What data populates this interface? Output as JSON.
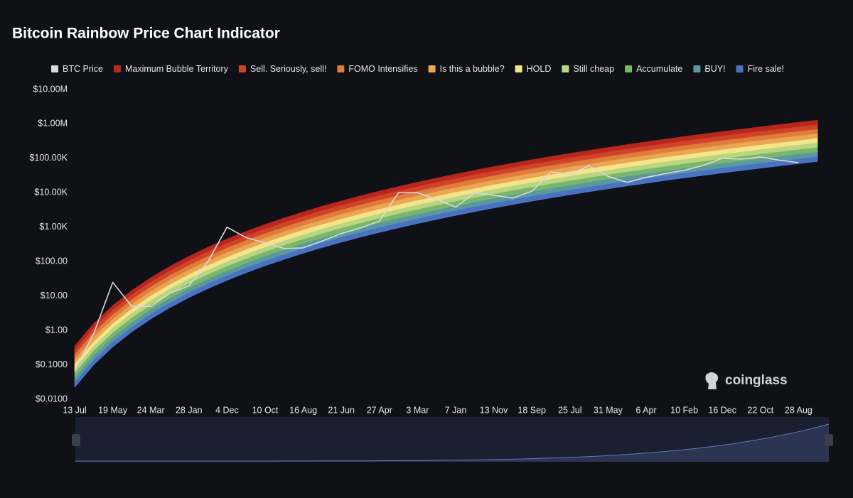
{
  "chart_data": {
    "type": "rainbow",
    "title": "Bitcoin Rainbow Price Chart Indicator",
    "watermark": "coinglass",
    "y_scale": "log",
    "grid": false,
    "legend": "top",
    "ylim": [
      0.01,
      10000000
    ],
    "yticks": [
      {
        "value": 0.01,
        "label": "$0.0100"
      },
      {
        "value": 0.1,
        "label": "$0.1000"
      },
      {
        "value": 1,
        "label": "$1.00"
      },
      {
        "value": 10,
        "label": "$10.00"
      },
      {
        "value": 100,
        "label": "$100.00"
      },
      {
        "value": 1000,
        "label": "$1.00K"
      },
      {
        "value": 10000,
        "label": "$10.00K"
      },
      {
        "value": 100000,
        "label": "$100.00K"
      },
      {
        "value": 1000000,
        "label": "$1.00M"
      },
      {
        "value": 10000000,
        "label": "$10.00M"
      }
    ],
    "categories": [
      "13 Jul",
      null,
      "19 May",
      null,
      "24 Mar",
      null,
      "28 Jan",
      null,
      "4 Dec",
      null,
      "10 Oct",
      null,
      "16 Aug",
      null,
      "21 Jun",
      null,
      "27 Apr",
      null,
      "3 Mar",
      null,
      "7 Jan",
      null,
      "13 Nov",
      null,
      "18 Sep",
      null,
      "25 Jul",
      null,
      "31 May",
      null,
      "6 Apr",
      null,
      "10 Feb",
      null,
      "16 Dec",
      null,
      "22 Oct",
      null,
      "28 Aug",
      null
    ],
    "band_floor": [
      0.0224,
      0.101,
      0.336,
      0.916,
      2.17,
      4.62,
      9.06,
      16.6,
      28.8,
      47.8,
      76.2,
      117,
      176,
      258,
      368,
      515,
      710,
      962,
      1285,
      1694,
      2208,
      2851,
      3631,
      4592,
      5754,
      7145,
      8810,
      10790,
      13120,
      15890,
      19100,
      22860,
      27230,
      32210,
      38020,
      44570,
      52120,
      60670,
      70470,
      81470
    ],
    "series": [
      {
        "name": "BTC Price",
        "color": "#d9d9d9",
        "role": "line",
        "values": [
          0.07,
          0.8,
          25,
          5,
          5,
          12,
          20,
          100,
          1000,
          500,
          350,
          240,
          250,
          400,
          650,
          950,
          1500,
          10000,
          10000,
          6500,
          3800,
          10000,
          8500,
          7000,
          11000,
          40000,
          35000,
          60000,
          30000,
          20000,
          28000,
          36000,
          45000,
          62000,
          100000,
          95000,
          110000,
          88000,
          75000,
          null
        ]
      },
      {
        "name": "Maximum Bubble Territory",
        "color": "#b8261d",
        "role": "band",
        "values": [
          0.355,
          1.6,
          5.33,
          14.5,
          34.4,
          73.2,
          144,
          263,
          456,
          758,
          1208,
          1854,
          2790,
          4089,
          5833,
          8163,
          11250,
          15250,
          20370,
          26850,
          35000,
          45190,
          57550,
          72780,
          91200,
          113200,
          139600,
          171000,
          208000,
          251900,
          302700,
          362300,
          431600,
          510500,
          602600,
          706400,
          826100,
          961600,
          1117000,
          1291000
        ]
      },
      {
        "name": "Sell. Seriously, sell!",
        "color": "#cf4428",
        "role": "band",
        "values": [
          0.261,
          1.18,
          3.92,
          10.7,
          25.3,
          53.9,
          106,
          194,
          336,
          557,
          888,
          1364,
          2052,
          3008,
          4291,
          6005,
          8279,
          11220,
          14980,
          19750,
          25750,
          33240,
          42340,
          53540,
          67090,
          83310,
          102700,
          125800,
          153000,
          185300,
          222700,
          266500,
          317500,
          375600,
          443300,
          519700,
          607700,
          707400,
          821700,
          949900
        ]
      },
      {
        "name": "FOMO Intensifies",
        "color": "#e07d3b",
        "role": "band",
        "values": [
          0.192,
          0.866,
          2.88,
          7.86,
          18.6,
          39.6,
          77.7,
          142,
          247,
          410,
          654,
          1004,
          1510,
          2213,
          3156,
          4417,
          6090,
          8251,
          11020,
          14530,
          18940,
          24450,
          31140,
          39380,
          49350,
          61280,
          75560,
          92550,
          112500,
          136300,
          163800,
          196100,
          233600,
          276300,
          326100,
          382300,
          447000,
          520400,
          604400,
          698800
        ]
      },
      {
        "name": "Is this a bubble?",
        "color": "#eba653",
        "role": "band",
        "values": [
          0.141,
          0.637,
          2.12,
          5.78,
          13.7,
          29.2,
          57.2,
          105,
          182,
          302,
          481,
          738,
          1111,
          1628,
          2322,
          3250,
          4480,
          6070,
          8108,
          10690,
          13930,
          17990,
          22910,
          28980,
          36310,
          45090,
          55590,
          68080,
          82790,
          100300,
          120500,
          144200,
          171800,
          203200,
          239900,
          281200,
          328900,
          382800,
          444700,
          514100
        ]
      },
      {
        "name": "HOLD",
        "color": "#f4e48a",
        "role": "band",
        "values": [
          0.104,
          0.469,
          1.56,
          4.25,
          10.1,
          21.4,
          42.1,
          77.1,
          134,
          222,
          354,
          543,
          817,
          1198,
          1708,
          2391,
          3296,
          4466,
          5965,
          7864,
          10250,
          13230,
          16860,
          21320,
          26710,
          33170,
          40900,
          50090,
          60900,
          73760,
          88660,
          106100,
          126400,
          149500,
          176500,
          206900,
          241900,
          281600,
          327100,
          378200
        ]
      },
      {
        "name": "Still cheap",
        "color": "#b7d67f",
        "role": "band",
        "values": [
          0.0765,
          0.345,
          1.15,
          3.13,
          7.41,
          15.8,
          30.9,
          56.7,
          98.4,
          163,
          260,
          400,
          601,
          881,
          1257,
          1759,
          2425,
          3285,
          4388,
          5785,
          7540,
          9736,
          12400,
          15680,
          19650,
          24400,
          30090,
          36850,
          44800,
          54260,
          65230,
          78070,
          92990,
          110000,
          129800,
          152200,
          178000,
          207200,
          240700,
          278200
        ]
      },
      {
        "name": "Accumulate",
        "color": "#78b66d",
        "role": "band",
        "values": [
          0.0563,
          0.254,
          0.844,
          2.3,
          5.45,
          11.6,
          22.8,
          41.7,
          72.3,
          120,
          191,
          294,
          442,
          648,
          924,
          1294,
          1784,
          2417,
          3228,
          4255,
          5546,
          7162,
          9121,
          11540,
          14450,
          17950,
          22130,
          27100,
          32960,
          39920,
          47980,
          57420,
          68400,
          80910,
          95510,
          112000,
          130900,
          152400,
          177000,
          204700
        ]
      },
      {
        "name": "BUY!",
        "color": "#5b979f",
        "role": "band",
        "values": [
          0.0414,
          0.187,
          0.621,
          1.69,
          4.01,
          8.54,
          16.7,
          30.7,
          53.2,
          88.3,
          141,
          216,
          325,
          477,
          680,
          952,
          1312,
          1778,
          2375,
          3131,
          4080,
          5269,
          6710,
          8486,
          10630,
          13200,
          16280,
          19940,
          24250,
          29360,
          35300,
          42250,
          50320,
          59520,
          70260,
          82370,
          96320,
          112100,
          130200,
          150600
        ]
      },
      {
        "name": "Fire sale!",
        "color": "#4a72c2",
        "role": "band",
        "values": [
          0.0304,
          0.137,
          0.457,
          1.24,
          2.95,
          6.28,
          12.3,
          22.6,
          39.1,
          65,
          104,
          159,
          239,
          351,
          500,
          700,
          965,
          1307,
          1746,
          2302,
          3001,
          3875,
          4935,
          6241,
          7820,
          9710,
          11970,
          14660,
          17830,
          21600,
          25960,
          31070,
          37010,
          43770,
          51670,
          60570,
          70830,
          82450,
          95770,
          110700
        ]
      }
    ]
  }
}
